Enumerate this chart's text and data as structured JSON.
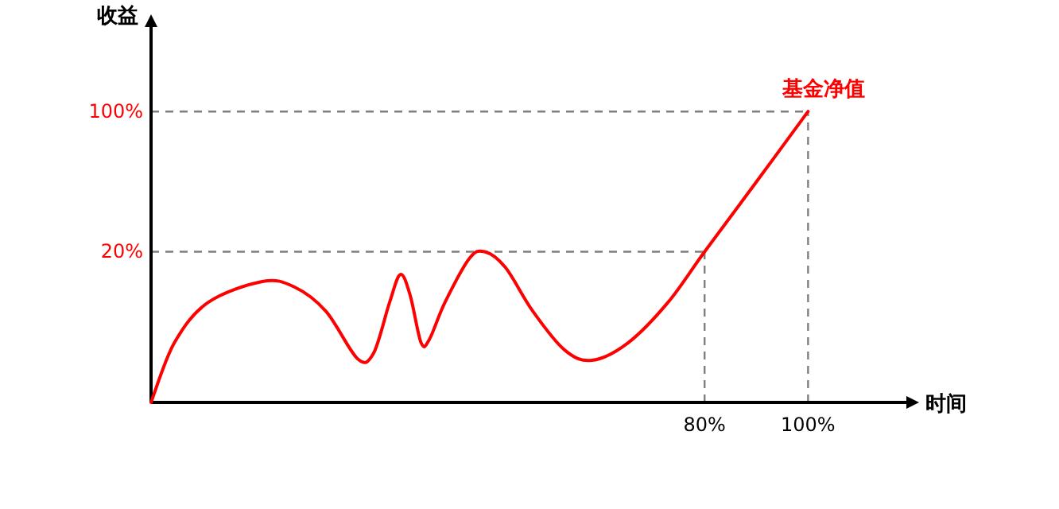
{
  "chart_data": {
    "type": "line",
    "xlabel": "时间",
    "ylabel": "收益",
    "xlim": [
      -27,
      119
    ],
    "ylim": [
      -66,
      150
    ],
    "xticks": [
      {
        "value": 80,
        "label": "80%"
      },
      {
        "value": 100,
        "label": "100%"
      }
    ],
    "yticks": [
      {
        "value": 20,
        "label": "20%"
      },
      {
        "value": 100,
        "label": "100%"
      }
    ],
    "grid": false,
    "legend": false,
    "marker": "none",
    "line_style": "solid",
    "ref_lines": [
      {
        "axis": "y",
        "value": 100,
        "color": "#7f7f7f",
        "line_style": "dashed"
      },
      {
        "axis": "y",
        "value": 20,
        "color": "#7f7f7f",
        "line_style": "dashed"
      },
      {
        "axis": "x",
        "value": 80,
        "color": "#7f7f7f",
        "line_style": "dashed"
      },
      {
        "axis": "x",
        "value": 100,
        "color": "#7f7f7f",
        "line_style": "dashed"
      }
    ],
    "series": [
      {
        "name": "基金净值",
        "color": "#ff0000",
        "x": [
          -27,
          -22.5,
          -16,
          -5.5,
          0.6,
          6.8,
          12.9,
          16,
          19.1,
          21.2,
          23.1,
          25.2,
          26.8,
          29.8,
          34.5,
          37.5,
          41.5,
          46.8,
          52.9,
          58.2,
          65.2,
          72.9,
          80,
          89.8,
          100
        ],
        "values": [
          -66,
          -32,
          -9,
          3,
          0,
          -14,
          -41,
          -38,
          -9,
          7,
          -5,
          -32,
          -30,
          -9,
          16,
          20,
          11,
          -14,
          -36,
          -42,
          -32,
          -9,
          20,
          59,
          100
        ]
      }
    ]
  }
}
